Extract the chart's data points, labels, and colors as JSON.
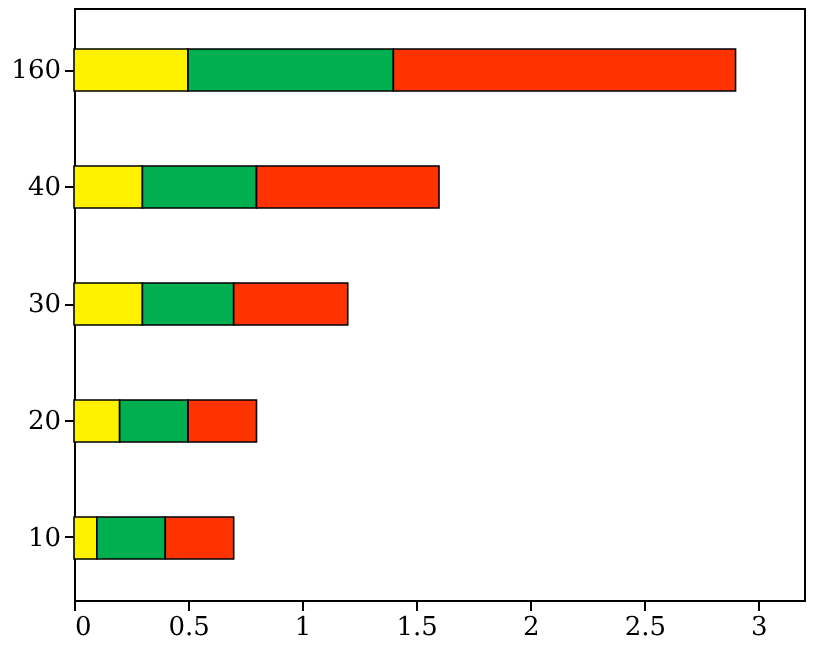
{
  "chart_data": {
    "type": "bar",
    "orientation": "horizontal",
    "stacked": true,
    "categories": [
      "160",
      "40",
      "30",
      "20",
      "10"
    ],
    "series": [
      {
        "color": "#fff200",
        "values": [
          0.5,
          0.3,
          0.3,
          0.2,
          0.1
        ]
      },
      {
        "color": "#00b050",
        "values": [
          0.9,
          0.5,
          0.4,
          0.3,
          0.3
        ]
      },
      {
        "color": "#ff3300",
        "values": [
          1.5,
          0.8,
          0.5,
          0.3,
          0.3
        ]
      }
    ],
    "xlim": [
      0,
      3.2
    ],
    "xticks": [
      0,
      0.5,
      1,
      1.5,
      2,
      2.5,
      3
    ],
    "grid": false
  }
}
